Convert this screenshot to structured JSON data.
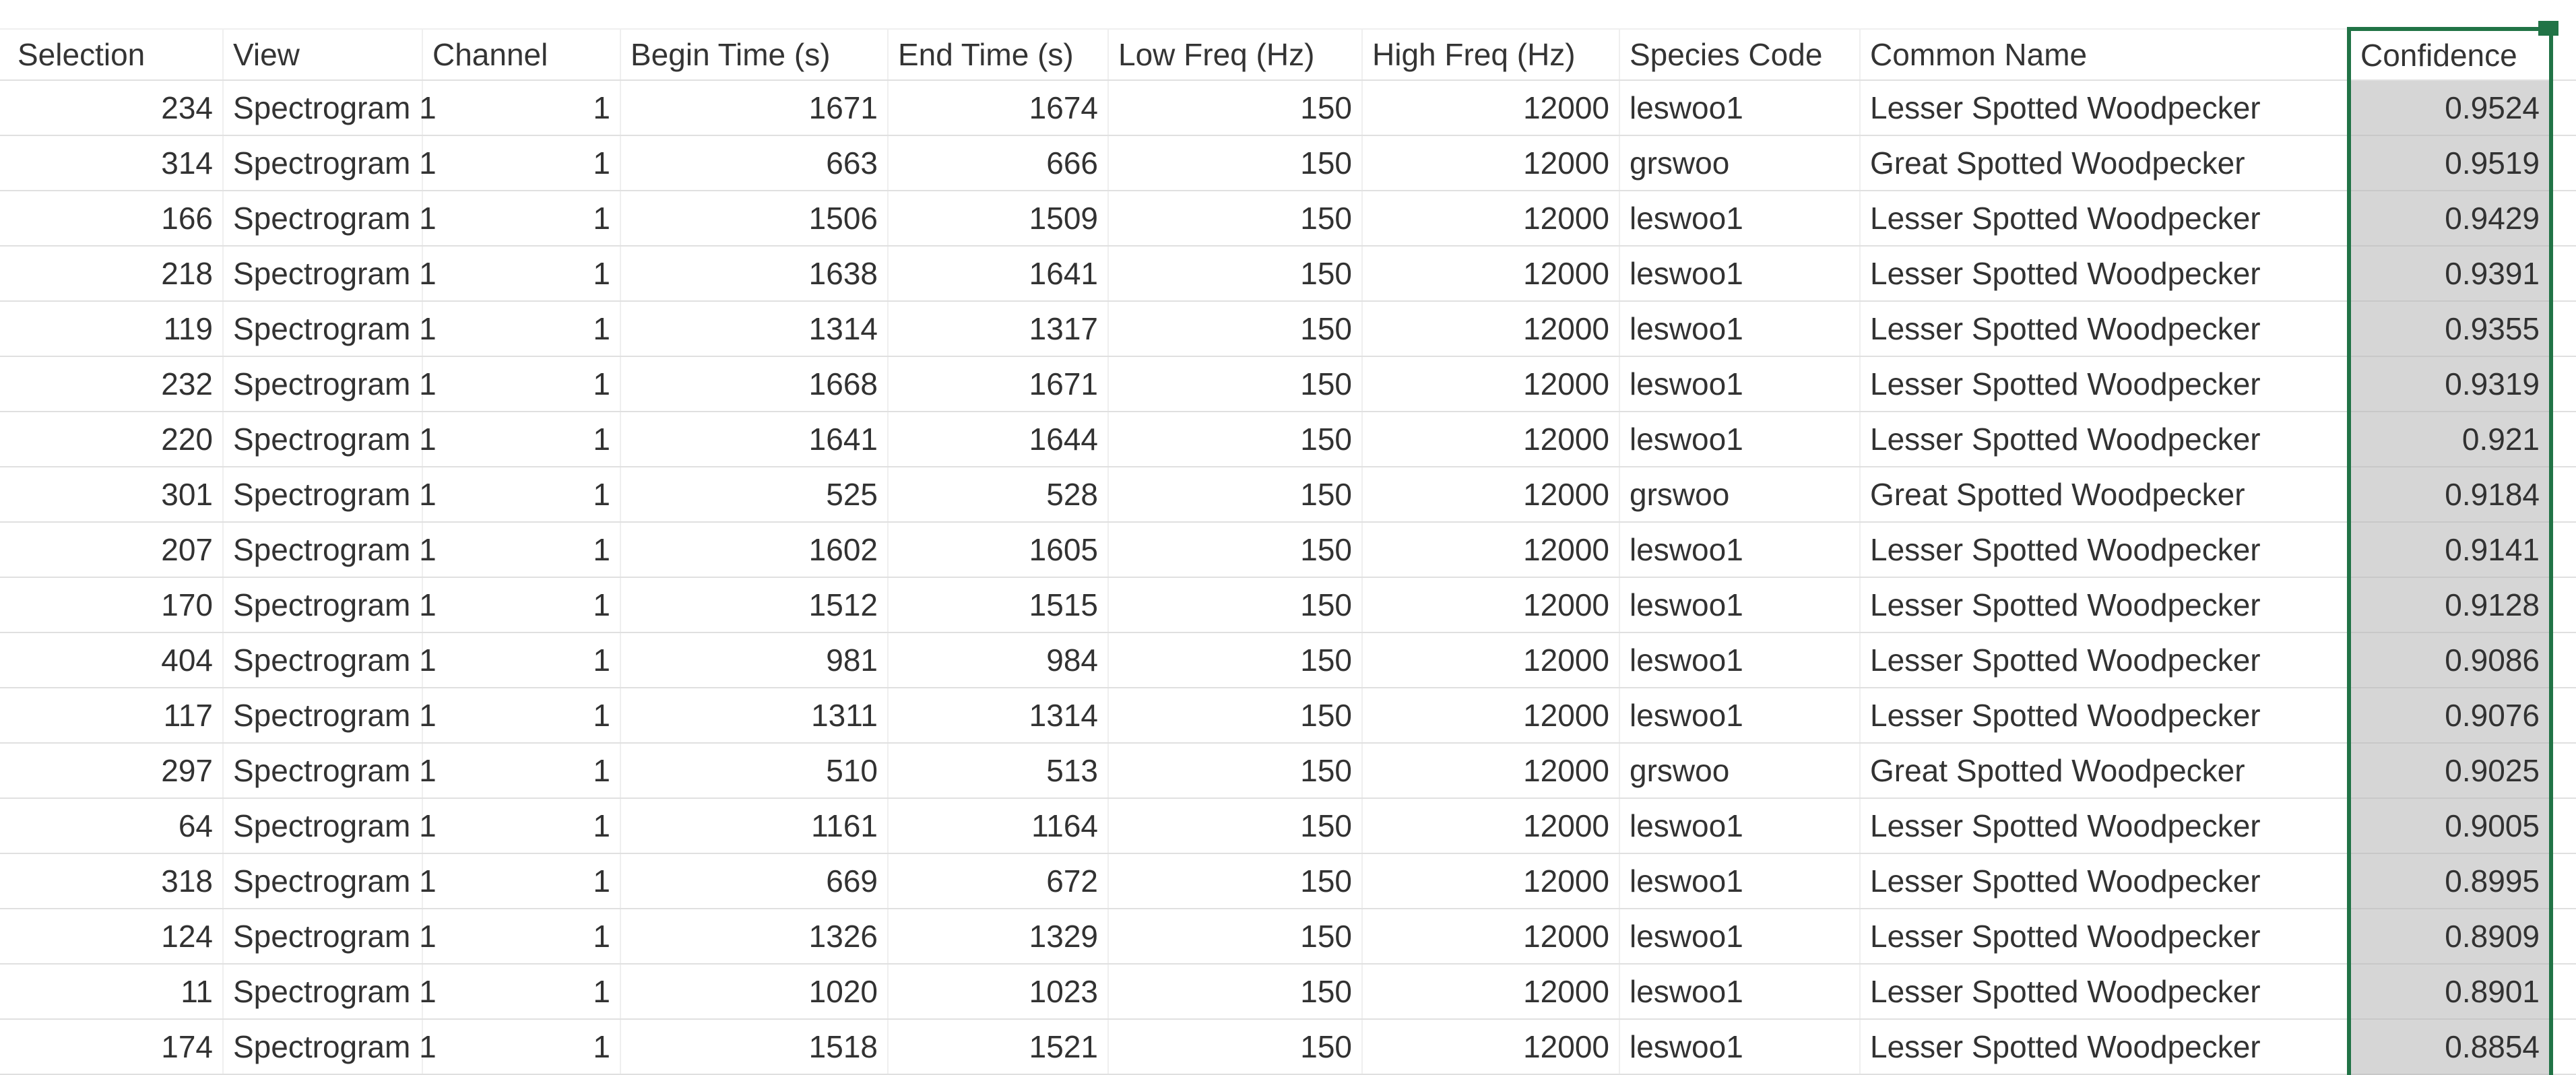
{
  "table": {
    "columns": [
      {
        "label": "Selection",
        "align": "right",
        "selected": false
      },
      {
        "label": "View",
        "align": "left",
        "selected": false
      },
      {
        "label": "Channel",
        "align": "right",
        "selected": false
      },
      {
        "label": "Begin Time (s)",
        "align": "right",
        "selected": false
      },
      {
        "label": "End Time (s)",
        "align": "right",
        "selected": false
      },
      {
        "label": "Low Freq (Hz)",
        "align": "right",
        "selected": false
      },
      {
        "label": "High Freq (Hz)",
        "align": "right",
        "selected": false
      },
      {
        "label": "Species Code",
        "align": "left",
        "selected": false
      },
      {
        "label": "Common Name",
        "align": "left",
        "selected": false
      },
      {
        "label": "Confidence",
        "align": "right",
        "selected": true
      }
    ],
    "rows": [
      [
        234,
        "Spectrogram 1",
        1,
        1671,
        1674,
        150,
        12000,
        "leswoo1",
        "Lesser Spotted Woodpecker",
        0.9524
      ],
      [
        314,
        "Spectrogram 1",
        1,
        663,
        666,
        150,
        12000,
        "grswoo",
        "Great Spotted Woodpecker",
        0.9519
      ],
      [
        166,
        "Spectrogram 1",
        1,
        1506,
        1509,
        150,
        12000,
        "leswoo1",
        "Lesser Spotted Woodpecker",
        0.9429
      ],
      [
        218,
        "Spectrogram 1",
        1,
        1638,
        1641,
        150,
        12000,
        "leswoo1",
        "Lesser Spotted Woodpecker",
        0.9391
      ],
      [
        119,
        "Spectrogram 1",
        1,
        1314,
        1317,
        150,
        12000,
        "leswoo1",
        "Lesser Spotted Woodpecker",
        0.9355
      ],
      [
        232,
        "Spectrogram 1",
        1,
        1668,
        1671,
        150,
        12000,
        "leswoo1",
        "Lesser Spotted Woodpecker",
        0.9319
      ],
      [
        220,
        "Spectrogram 1",
        1,
        1641,
        1644,
        150,
        12000,
        "leswoo1",
        "Lesser Spotted Woodpecker",
        0.921
      ],
      [
        301,
        "Spectrogram 1",
        1,
        525,
        528,
        150,
        12000,
        "grswoo",
        "Great Spotted Woodpecker",
        0.9184
      ],
      [
        207,
        "Spectrogram 1",
        1,
        1602,
        1605,
        150,
        12000,
        "leswoo1",
        "Lesser Spotted Woodpecker",
        0.9141
      ],
      [
        170,
        "Spectrogram 1",
        1,
        1512,
        1515,
        150,
        12000,
        "leswoo1",
        "Lesser Spotted Woodpecker",
        0.9128
      ],
      [
        404,
        "Spectrogram 1",
        1,
        981,
        984,
        150,
        12000,
        "leswoo1",
        "Lesser Spotted Woodpecker",
        0.9086
      ],
      [
        117,
        "Spectrogram 1",
        1,
        1311,
        1314,
        150,
        12000,
        "leswoo1",
        "Lesser Spotted Woodpecker",
        0.9076
      ],
      [
        297,
        "Spectrogram 1",
        1,
        510,
        513,
        150,
        12000,
        "grswoo",
        "Great Spotted Woodpecker",
        0.9025
      ],
      [
        64,
        "Spectrogram 1",
        1,
        1161,
        1164,
        150,
        12000,
        "leswoo1",
        "Lesser Spotted Woodpecker",
        0.9005
      ],
      [
        318,
        "Spectrogram 1",
        1,
        669,
        672,
        150,
        12000,
        "leswoo1",
        "Lesser Spotted Woodpecker",
        0.8995
      ],
      [
        124,
        "Spectrogram 1",
        1,
        1326,
        1329,
        150,
        12000,
        "leswoo1",
        "Lesser Spotted Woodpecker",
        0.8909
      ],
      [
        11,
        "Spectrogram 1",
        1,
        1020,
        1023,
        150,
        12000,
        "leswoo1",
        "Lesser Spotted Woodpecker",
        0.8901
      ],
      [
        174,
        "Spectrogram 1",
        1,
        1518,
        1521,
        150,
        12000,
        "leswoo1",
        "Lesser Spotted Woodpecker",
        0.8854
      ]
    ]
  },
  "selection": {
    "selected_column": "Confidence",
    "border_color": "#217346",
    "fill_color": "#d6d6d6"
  },
  "colors": {
    "gridline_horizontal": "#e0e0e0",
    "gridline_vertical": "#efefef",
    "text": "#323232",
    "background": "#ffffff"
  }
}
